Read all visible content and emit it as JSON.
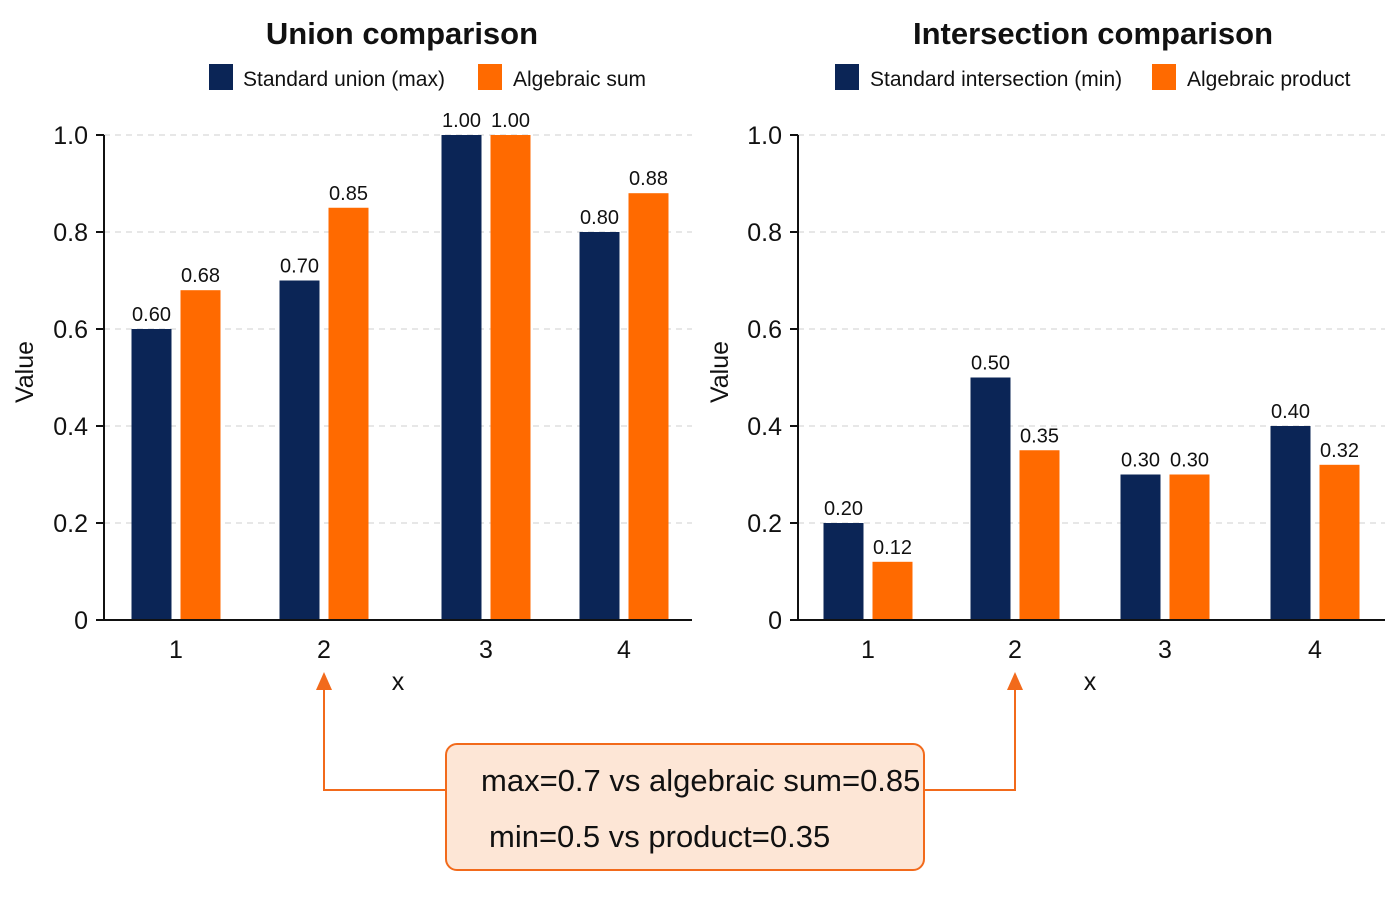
{
  "colors": {
    "navy": "#0B2556",
    "orange": "#FF6A00",
    "callout_border": "#F26A1B",
    "callout_fill": "#FDE6D6"
  },
  "chart_data": [
    {
      "type": "bar",
      "title": "Union comparison",
      "xlabel": "x",
      "ylabel": "Value",
      "categories": [
        "1",
        "2",
        "3",
        "4"
      ],
      "yticks": [
        "0",
        "0.2",
        "0.4",
        "0.6",
        "0.8",
        "1.0"
      ],
      "ylim": [
        0,
        1.0
      ],
      "grid": true,
      "legend_position": "top",
      "series": [
        {
          "name": "Standard union (max)",
          "color": "#0B2556",
          "values": [
            0.6,
            0.7,
            1.0,
            0.8
          ],
          "labels": [
            "0.60",
            "0.70",
            "1.00",
            "0.80"
          ]
        },
        {
          "name": "Algebraic sum",
          "color": "#FF6A00",
          "values": [
            0.68,
            0.85,
            1.0,
            0.88
          ],
          "labels": [
            "0.68",
            "0.85",
            "1.00",
            "0.88"
          ]
        }
      ]
    },
    {
      "type": "bar",
      "title": "Intersection comparison",
      "xlabel": "x",
      "ylabel": "Value",
      "categories": [
        "1",
        "2",
        "3",
        "4"
      ],
      "yticks": [
        "0",
        "0.2",
        "0.4",
        "0.6",
        "0.8",
        "1.0"
      ],
      "ylim": [
        0,
        1.0
      ],
      "grid": true,
      "legend_position": "top",
      "series": [
        {
          "name": "Standard intersection (min)",
          "color": "#0B2556",
          "values": [
            0.2,
            0.5,
            0.3,
            0.4
          ],
          "labels": [
            "0.20",
            "0.50",
            "0.30",
            "0.40"
          ]
        },
        {
          "name": "Algebraic product",
          "color": "#FF6A00",
          "values": [
            0.12,
            0.35,
            0.3,
            0.32
          ],
          "labels": [
            "0.12",
            "0.35",
            "0.30",
            "0.32"
          ]
        }
      ]
    }
  ],
  "callout": {
    "line1": "max=0.7 vs algebraic sum=0.85",
    "line2": "min=0.5 vs product=0.35"
  }
}
